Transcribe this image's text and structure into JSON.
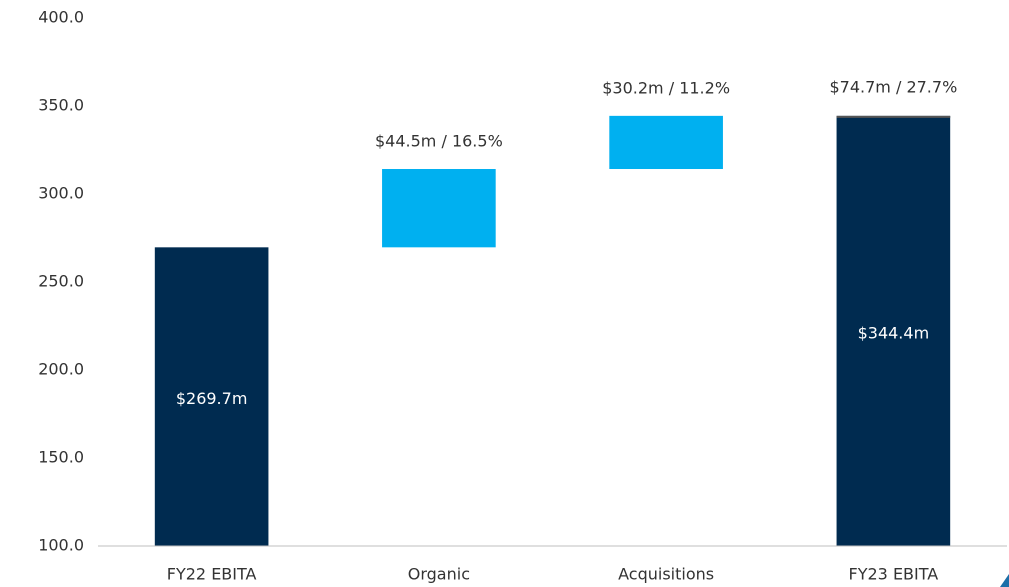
{
  "chart_data": {
    "type": "waterfall",
    "categories": [
      "FY22 EBITA",
      "Organic",
      "Acquisitions",
      "FY23 EBITA"
    ],
    "values": [
      269.7,
      44.5,
      30.2,
      344.4
    ],
    "value_labels": [
      "$269.7m",
      "$44.5m / 16.5%",
      "$30.2m / 11.2%",
      "$344.4m"
    ],
    "kinds": [
      "total",
      "delta",
      "delta",
      "total"
    ],
    "colors": {
      "total": "#002b50",
      "delta": "#00b0f0"
    },
    "total_change_label": "$74.7m / 27.7%",
    "ylim": [
      100,
      400
    ],
    "yticks": [
      {
        "value": 100,
        "label": "100.0"
      },
      {
        "value": 150,
        "label": "150.0"
      },
      {
        "value": 200,
        "label": "200.0"
      },
      {
        "value": 250,
        "label": "250.0"
      },
      {
        "value": 300,
        "label": "300.0"
      },
      {
        "value": 350,
        "label": "350.0"
      },
      {
        "value": 400,
        "label": "400.0"
      }
    ],
    "grid": false
  }
}
